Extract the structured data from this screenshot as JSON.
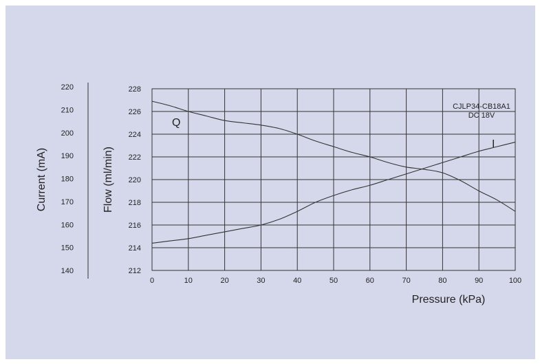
{
  "chart_data": {
    "type": "line",
    "xlabel": "Pressure (kPa)",
    "y_left_outer_label": "Current (mA)",
    "y_left_inner_label": "Flow (ml/min)",
    "xlim": [
      0,
      100
    ],
    "x_ticks": [
      "0",
      "10",
      "20",
      "30",
      "40",
      "50",
      "60",
      "70",
      "80",
      "90",
      "100"
    ],
    "flow_ylim": [
      212,
      228
    ],
    "flow_ticks": [
      "212",
      "214",
      "216",
      "218",
      "220",
      "222",
      "224",
      "226",
      "228"
    ],
    "current_ticks": [
      "140",
      "150",
      "160",
      "170",
      "180",
      "190",
      "200",
      "210",
      "220"
    ],
    "grid": true,
    "annotation": {
      "line1": "CJLP34-CB18A1",
      "line2": "DC 18V"
    },
    "series": [
      {
        "name": "Q",
        "axis": "flow",
        "x": [
          0,
          5,
          10,
          15,
          20,
          25,
          30,
          35,
          40,
          45,
          50,
          55,
          60,
          65,
          70,
          75,
          80,
          85,
          90,
          95,
          100
        ],
        "y": [
          226.9,
          226.5,
          226.0,
          225.6,
          225.2,
          225.0,
          224.8,
          224.5,
          224.0,
          223.4,
          222.9,
          222.4,
          222.0,
          221.5,
          221.1,
          220.9,
          220.6,
          219.9,
          219.0,
          218.2,
          217.2
        ]
      },
      {
        "name": "I",
        "axis": "flow",
        "x": [
          0,
          5,
          10,
          15,
          20,
          25,
          30,
          35,
          40,
          45,
          50,
          55,
          60,
          65,
          70,
          75,
          80,
          85,
          90,
          95,
          100
        ],
        "y": [
          214.4,
          214.6,
          214.8,
          215.1,
          215.4,
          215.7,
          216.0,
          216.5,
          217.2,
          218.0,
          218.6,
          219.1,
          219.5,
          220.0,
          220.5,
          221.0,
          221.5,
          222.0,
          222.5,
          222.9,
          223.3
        ]
      }
    ]
  }
}
